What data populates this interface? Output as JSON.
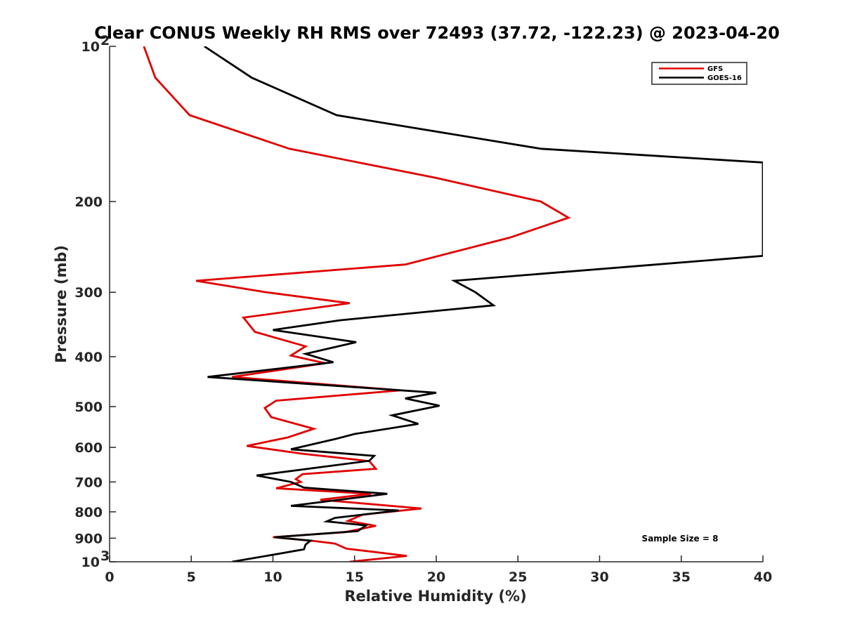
{
  "chart_data": {
    "type": "line",
    "title": "Clear CONUS Weekly RH RMS over 72493 (37.72, -122.23) @ 2023-04-20",
    "xlabel": "Relative Humidity (%)",
    "ylabel": "Pressure (mb)",
    "xlim": [
      0,
      40
    ],
    "ylim": [
      100,
      1000
    ],
    "yscale": "log",
    "y_reversed": true,
    "x_ticks": [
      "0",
      "5",
      "10",
      "15",
      "20",
      "25",
      "30",
      "35",
      "40"
    ],
    "y_ticks": [
      {
        "value": 100,
        "label": "10",
        "sup": "2"
      },
      {
        "value": 200,
        "label": "200",
        "sup": ""
      },
      {
        "value": 300,
        "label": "300",
        "sup": ""
      },
      {
        "value": 400,
        "label": "400",
        "sup": ""
      },
      {
        "value": 500,
        "label": "500",
        "sup": ""
      },
      {
        "value": 600,
        "label": "600",
        "sup": ""
      },
      {
        "value": 700,
        "label": "700",
        "sup": ""
      },
      {
        "value": 800,
        "label": "800",
        "sup": ""
      },
      {
        "value": 900,
        "label": "900",
        "sup": ""
      },
      {
        "value": 1000,
        "label": "10",
        "sup": "3"
      }
    ],
    "grid": false,
    "legend_position": "top-right",
    "annotation": "Sample Size = 8",
    "series": [
      {
        "name": "GFS",
        "color": "#e00000",
        "points": [
          [
            2.1,
            100
          ],
          [
            2.8,
            115
          ],
          [
            4.9,
            136
          ],
          [
            11.0,
            158
          ],
          [
            20.0,
            180
          ],
          [
            26.4,
            200
          ],
          [
            28.1,
            215
          ],
          [
            24.5,
            235
          ],
          [
            18.1,
            265
          ],
          [
            5.3,
            285
          ],
          [
            9.6,
            300
          ],
          [
            14.7,
            315
          ],
          [
            8.2,
            336
          ],
          [
            8.9,
            358
          ],
          [
            12.0,
            382
          ],
          [
            11.1,
            398
          ],
          [
            13.2,
            412
          ],
          [
            7.5,
            438
          ],
          [
            17.8,
            465
          ],
          [
            10.2,
            487
          ],
          [
            9.5,
            503
          ],
          [
            9.9,
            524
          ],
          [
            12.5,
            552
          ],
          [
            10.9,
            574
          ],
          [
            8.4,
            596
          ],
          [
            11.8,
            617
          ],
          [
            15.9,
            638
          ],
          [
            16.3,
            660
          ],
          [
            11.8,
            676
          ],
          [
            11.4,
            691
          ],
          [
            11.7,
            700
          ],
          [
            10.2,
            720
          ],
          [
            16.0,
            738
          ],
          [
            12.9,
            758
          ],
          [
            19.1,
            788
          ],
          [
            15.5,
            810
          ],
          [
            14.6,
            833
          ],
          [
            16.3,
            852
          ],
          [
            14.4,
            876
          ],
          [
            10.0,
            896
          ],
          [
            12.6,
            912
          ],
          [
            13.8,
            922
          ],
          [
            14.5,
            943
          ],
          [
            18.2,
            974
          ],
          [
            14.7,
            1000
          ]
        ]
      },
      {
        "name": "GOES-16",
        "color": "#000000",
        "points": [
          [
            5.8,
            100
          ],
          [
            8.7,
            115
          ],
          [
            13.9,
            136
          ],
          [
            26.4,
            158
          ],
          [
            40.0,
            168
          ],
          [
            40.0,
            255
          ],
          [
            21.1,
            285
          ],
          [
            22.4,
            300
          ],
          [
            23.5,
            318
          ],
          [
            14.1,
            340
          ],
          [
            10.0,
            355
          ],
          [
            15.1,
            375
          ],
          [
            12.0,
            395
          ],
          [
            13.7,
            410
          ],
          [
            6.0,
            438
          ],
          [
            20.0,
            470
          ],
          [
            18.1,
            482
          ],
          [
            20.2,
            498
          ],
          [
            17.3,
            520
          ],
          [
            18.9,
            540
          ],
          [
            15.0,
            565
          ],
          [
            13.8,
            578
          ],
          [
            11.1,
            605
          ],
          [
            16.2,
            623
          ],
          [
            15.9,
            637
          ],
          [
            9.0,
            680
          ],
          [
            11.1,
            700
          ],
          [
            11.9,
            718
          ],
          [
            17.0,
            738
          ],
          [
            11.1,
            779
          ],
          [
            17.7,
            795
          ],
          [
            13.8,
            822
          ],
          [
            13.3,
            835
          ],
          [
            15.7,
            850
          ],
          [
            15.2,
            872
          ],
          [
            10.1,
            896
          ],
          [
            12.3,
            910
          ],
          [
            12.0,
            926
          ],
          [
            11.9,
            946
          ],
          [
            10.5,
            963
          ],
          [
            7.5,
            1000
          ]
        ]
      }
    ]
  }
}
